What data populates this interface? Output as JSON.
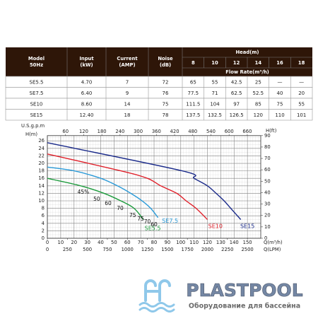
{
  "table": {
    "header": [
      [
        "Model",
        "50Hz"
      ],
      [
        "Input",
        "(kW)"
      ],
      [
        "Current",
        "(AMP)"
      ],
      [
        "Noise",
        "(dB)"
      ]
    ],
    "head_label": "Head(m)",
    "heads": [
      8,
      10,
      12,
      14,
      16,
      18
    ],
    "flow_label": "Flow Rate(m³/h)",
    "rows": [
      [
        "SE5.5",
        "4.70",
        "7",
        "72",
        "65",
        "55",
        "42.5",
        "25",
        "—",
        "—"
      ],
      [
        "SE7.5",
        "6.40",
        "9",
        "76",
        "77.5",
        "71",
        "62.5",
        "52.5",
        "40",
        "20"
      ],
      [
        "SE10",
        "8.60",
        "14",
        "75",
        "111.5",
        "104",
        "97",
        "85",
        "75",
        "55"
      ],
      [
        "SE15",
        "12.40",
        "18",
        "78",
        "137.5",
        "132.5",
        "126.5",
        "120",
        "110",
        "101"
      ]
    ]
  },
  "chart_data": {
    "type": "line",
    "x_label": "Q(m³/h)",
    "x2_label": "Q(LPM)",
    "top_label": "U.S.g.p.m",
    "y_label": "H(m)",
    "y2_label": "H(ft)",
    "xlim": [
      0,
      160
    ],
    "xticks": [
      0,
      10,
      20,
      30,
      40,
      50,
      60,
      70,
      80,
      90,
      100,
      110,
      120,
      130,
      140,
      150
    ],
    "lpm_lim": [
      0,
      2666.7
    ],
    "lpm_ticks": [
      0,
      250,
      500,
      750,
      1000,
      1250,
      1500,
      1750,
      2000,
      2250,
      2500
    ],
    "gpm_lim": [
      0,
      704.5
    ],
    "gpm_ticks": [
      60,
      120,
      180,
      240,
      300,
      360,
      420,
      480,
      540,
      600,
      660
    ],
    "ylim": [
      0,
      27.4
    ],
    "yticks": [
      0,
      2,
      4,
      6,
      8,
      10,
      12,
      14,
      16,
      18,
      20,
      22,
      24,
      26
    ],
    "y2lim": [
      0,
      90
    ],
    "y2ticks": [
      0,
      10,
      20,
      30,
      40,
      50,
      60,
      70,
      80,
      90
    ],
    "grid": true,
    "series": [
      {
        "name": "SE15",
        "color": "#1a2a8a",
        "x": [
          0,
          101,
          110,
          120,
          126.5,
          132.5,
          137.5,
          145
        ],
        "values": [
          25.5,
          18,
          16,
          14,
          12,
          10,
          8,
          5
        ]
      },
      {
        "name": "SE10",
        "color": "#e0202a",
        "x": [
          0,
          55,
          75,
          85,
          97,
          104,
          111.5,
          120
        ],
        "values": [
          22.5,
          18,
          16,
          14,
          12,
          10,
          8,
          5
        ]
      },
      {
        "name": "SE7.5",
        "color": "#2a9ad8",
        "x": [
          0,
          20,
          40,
          52.5,
          62.5,
          71,
          77.5,
          83
        ],
        "values": [
          19,
          18,
          16,
          14,
          12,
          10,
          8,
          5.5
        ]
      },
      {
        "name": "SE5.5",
        "color": "#1a9a3a",
        "x": [
          0,
          25,
          42.5,
          55,
          65,
          72
        ],
        "values": [
          16,
          14,
          12,
          10,
          8,
          5
        ]
      }
    ],
    "annotations": [
      "45%",
      "50",
      "60",
      "70",
      "75",
      "75",
      "70",
      "60"
    ]
  },
  "logo": {
    "name": "PLASTPOOL",
    "tagline": "Оборудование для бассейна"
  }
}
